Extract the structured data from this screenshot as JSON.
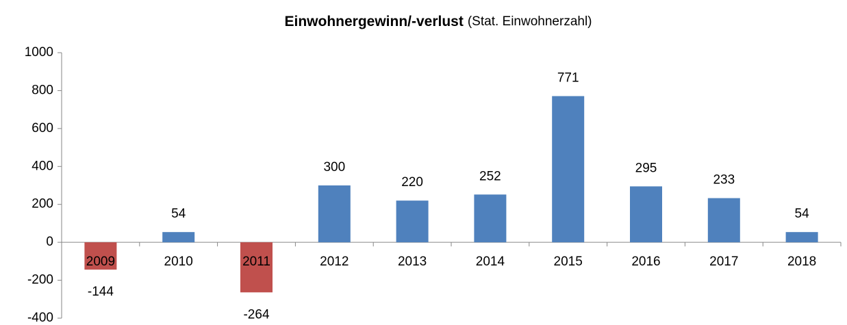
{
  "chart_data": {
    "type": "bar",
    "title": "Einwohnergewinn/-verlust",
    "subtitle": "(Stat. Einwohnerzahl)",
    "categories": [
      "2009",
      "2010",
      "2011",
      "2012",
      "2013",
      "2014",
      "2015",
      "2016",
      "2017",
      "2018"
    ],
    "values": [
      -144,
      54,
      -264,
      300,
      220,
      252,
      771,
      295,
      233,
      54
    ],
    "colors": [
      "#c0504d",
      "#4f81bd",
      "#c0504d",
      "#4f81bd",
      "#4f81bd",
      "#4f81bd",
      "#4f81bd",
      "#4f81bd",
      "#4f81bd",
      "#4f81bd"
    ],
    "ylim": [
      -400,
      1000
    ],
    "yticks": [
      -400,
      -200,
      0,
      200,
      400,
      600,
      800,
      1000
    ],
    "grid": false
  }
}
